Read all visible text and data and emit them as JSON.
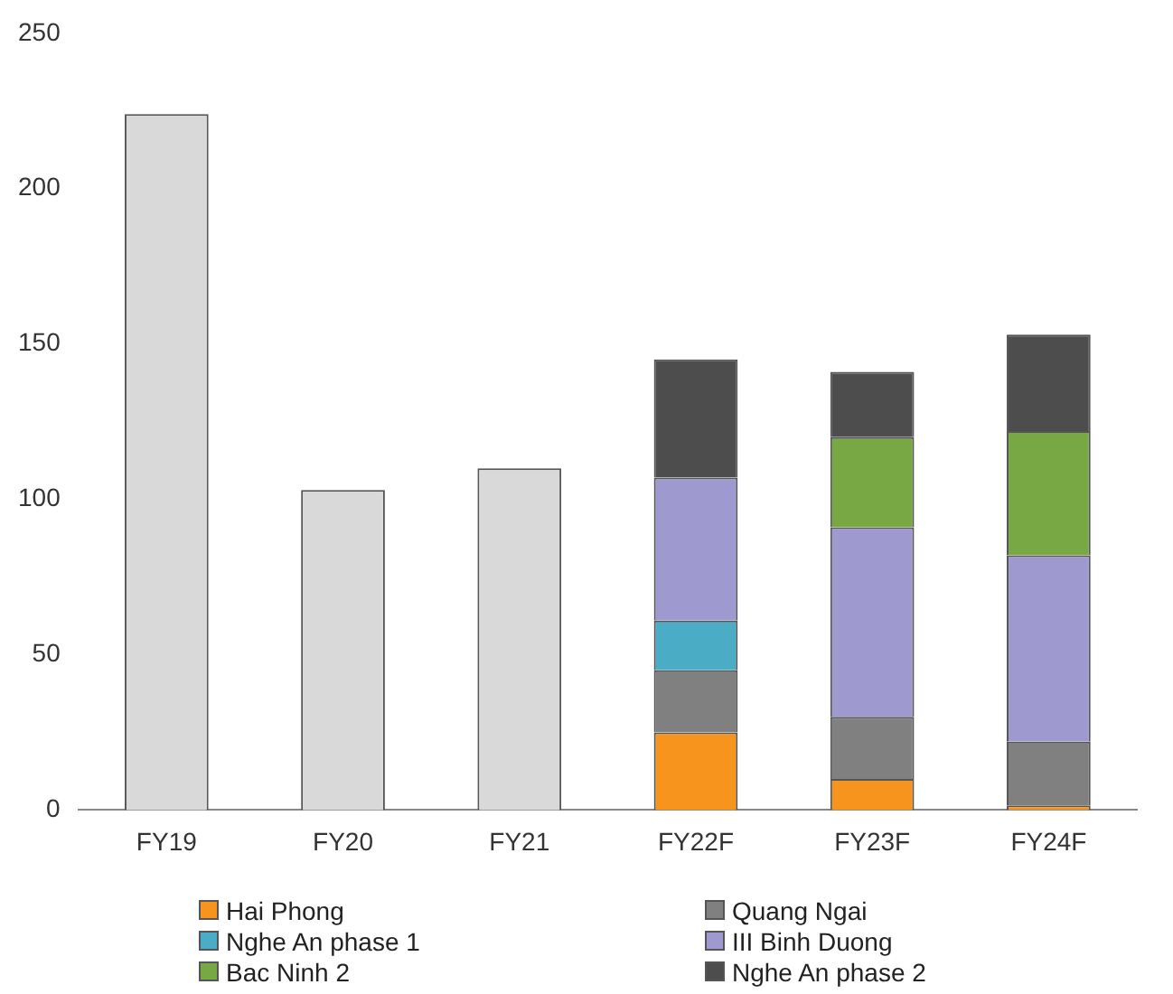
{
  "chart_data": {
    "type": "bar",
    "stacked": true,
    "categories": [
      "FY19",
      "FY20",
      "FY21",
      "FY22F",
      "FY23F",
      "FY24F"
    ],
    "ylim": [
      0,
      250
    ],
    "yticks": [
      0,
      50,
      100,
      150,
      200,
      250
    ],
    "legend": "bottom",
    "series": [
      {
        "color": "#d9d9d9",
        "values": [
          224,
          103,
          110,
          null,
          null,
          null
        ]
      },
      {
        "name": "Hai Phong",
        "color": "#f7941d",
        "values": [
          null,
          null,
          null,
          25,
          10,
          1.5
        ]
      },
      {
        "name": "Quang Ngai",
        "color": "#808080",
        "values": [
          null,
          null,
          null,
          20,
          20,
          20.5
        ]
      },
      {
        "name": "Nghe An phase 1",
        "color": "#4bacc6",
        "values": [
          null,
          null,
          null,
          16,
          null,
          null
        ]
      },
      {
        "name": "III Binh Duong",
        "color": "#9e9ad0",
        "values": [
          null,
          null,
          null,
          46,
          61,
          60
        ]
      },
      {
        "name": "Bac Ninh 2",
        "color": "#77a844",
        "values": [
          null,
          null,
          null,
          null,
          29,
          40
        ]
      },
      {
        "name": "Nghe An phase 2",
        "color": "#4d4d4d",
        "values": [
          null,
          null,
          null,
          38,
          21,
          31
        ]
      }
    ]
  }
}
